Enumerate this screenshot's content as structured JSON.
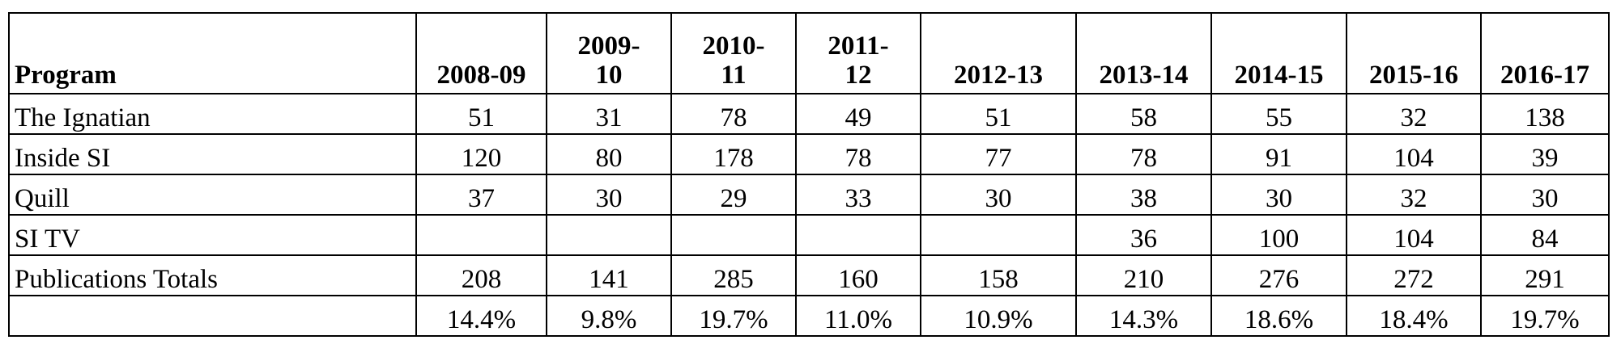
{
  "table": {
    "header": [
      "Program",
      "2008-09",
      "2009-10",
      "2010-11",
      "2011-12",
      "2012-13",
      "2013-14",
      "2014-15",
      "2015-16",
      "2016-17"
    ],
    "rows": [
      [
        "The Ignatian",
        51,
        31,
        78,
        49,
        51,
        58,
        55,
        32,
        138
      ],
      [
        "Inside SI",
        120,
        80,
        178,
        78,
        77,
        78,
        91,
        104,
        39
      ],
      [
        "Quill",
        37,
        30,
        29,
        33,
        30,
        38,
        30,
        32,
        30
      ],
      [
        "SI TV",
        null,
        null,
        null,
        null,
        null,
        36,
        100,
        104,
        84
      ],
      [
        "Publications Totals",
        208,
        141,
        285,
        160,
        158,
        210,
        276,
        272,
        291
      ],
      [
        null,
        "14.4%",
        "9.8%",
        "19.7%",
        "11.0%",
        "10.9%",
        "14.3%",
        "18.6%",
        "18.4%",
        "19.7%"
      ]
    ]
  }
}
